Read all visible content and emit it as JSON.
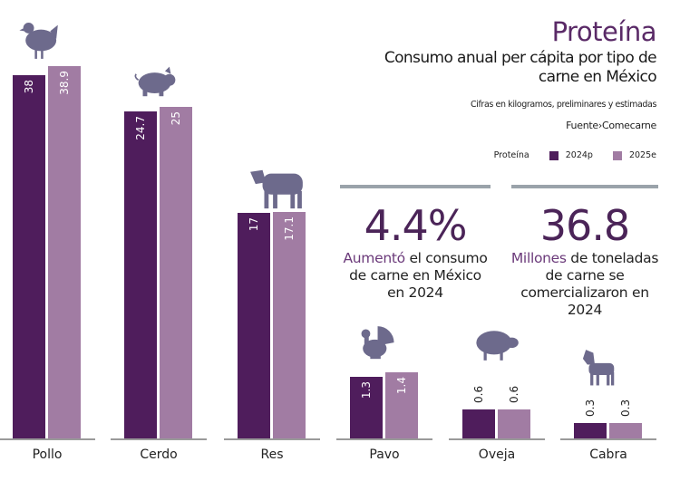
{
  "header": {
    "title": "Proteína",
    "subtitle": "Consumo anual per cápita por tipo de carne en México",
    "note": "Cifras en kilogramos, preliminares y estimadas",
    "source": "Fuente›Comecarne"
  },
  "legend": {
    "label": "Proteína",
    "items": [
      {
        "name": "2024p",
        "color": "#4f1d5c"
      },
      {
        "name": "2025e",
        "color": "#a17ca3"
      }
    ]
  },
  "stats": [
    {
      "value": "4.4%",
      "highlight": "Aumentó",
      "text": " el consumo de carne en México en 2024"
    },
    {
      "value": "36.8",
      "highlight": "Millones",
      "text": " de toneladas de carne se comercializaron en 2024"
    }
  ],
  "icon_color": "#6d6a8c",
  "chart_data": {
    "type": "bar",
    "categories": [
      "Pollo",
      "Cerdo",
      "Res",
      "Pavo",
      "Oveja",
      "Cabra"
    ],
    "icons": [
      "chicken-icon",
      "pig-icon",
      "cow-icon",
      "turkey-icon",
      "sheep-icon",
      "goat-icon"
    ],
    "series": [
      {
        "name": "2024p",
        "values": [
          38,
          24.7,
          17,
          1.3,
          0.6,
          0.3
        ],
        "labels": [
          "38",
          "24.7",
          "17",
          "1.3",
          "0.6",
          "0.3"
        ]
      },
      {
        "name": "2025e",
        "values": [
          38.9,
          25,
          17.1,
          1.4,
          0.6,
          0.3
        ],
        "labels": [
          "38.9",
          "25",
          "17.1",
          "1.4",
          "0.6",
          "0.3"
        ]
      }
    ],
    "unit": "kg"
  }
}
